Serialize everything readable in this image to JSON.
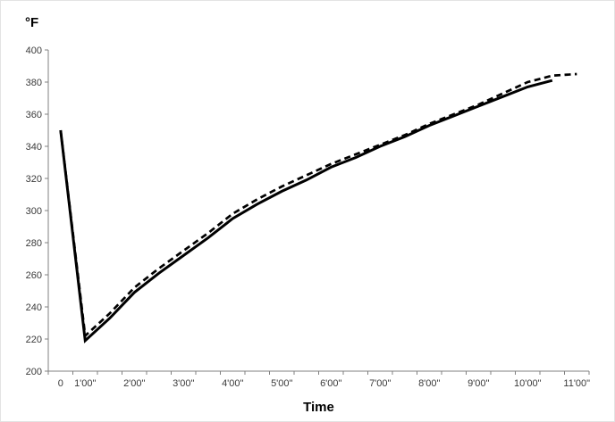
{
  "chart_data": {
    "type": "line",
    "y_axis_title": "°F",
    "x_axis_title": "Time",
    "ylim": [
      200,
      400
    ],
    "ytick_step": 20,
    "ytick_labels": [
      "200",
      "220",
      "240",
      "260",
      "280",
      "300",
      "320",
      "340",
      "360",
      "380",
      "400"
    ],
    "categories": [
      "0",
      "1'00\"",
      "",
      "2'00\"",
      "",
      "3'00\"",
      "",
      "4'00\"",
      "",
      "5'00\"",
      "",
      "6'00\"",
      "",
      "7'00\"",
      "",
      "8'00\"",
      "",
      "9'00\"",
      "",
      "10'00\"",
      "",
      "11'00\""
    ],
    "series": [
      {
        "name": "solid",
        "style": "solid",
        "color": "#000000",
        "values": [
          350,
          219,
          233,
          249,
          261,
          272,
          283,
          295,
          304,
          312,
          319,
          327,
          333,
          340,
          346,
          353,
          359,
          365,
          371,
          377,
          381,
          null
        ]
      },
      {
        "name": "dashed",
        "style": "dashed",
        "color": "#000000",
        "values": [
          350,
          222,
          236,
          252,
          264,
          275,
          286,
          298,
          307,
          315,
          322,
          329,
          335,
          341,
          347,
          354,
          360,
          366,
          373,
          380,
          384,
          385
        ]
      }
    ],
    "grid": "off",
    "legend": "none",
    "axis_color": "#808080",
    "tick_label_color": "#3a3a3a"
  }
}
